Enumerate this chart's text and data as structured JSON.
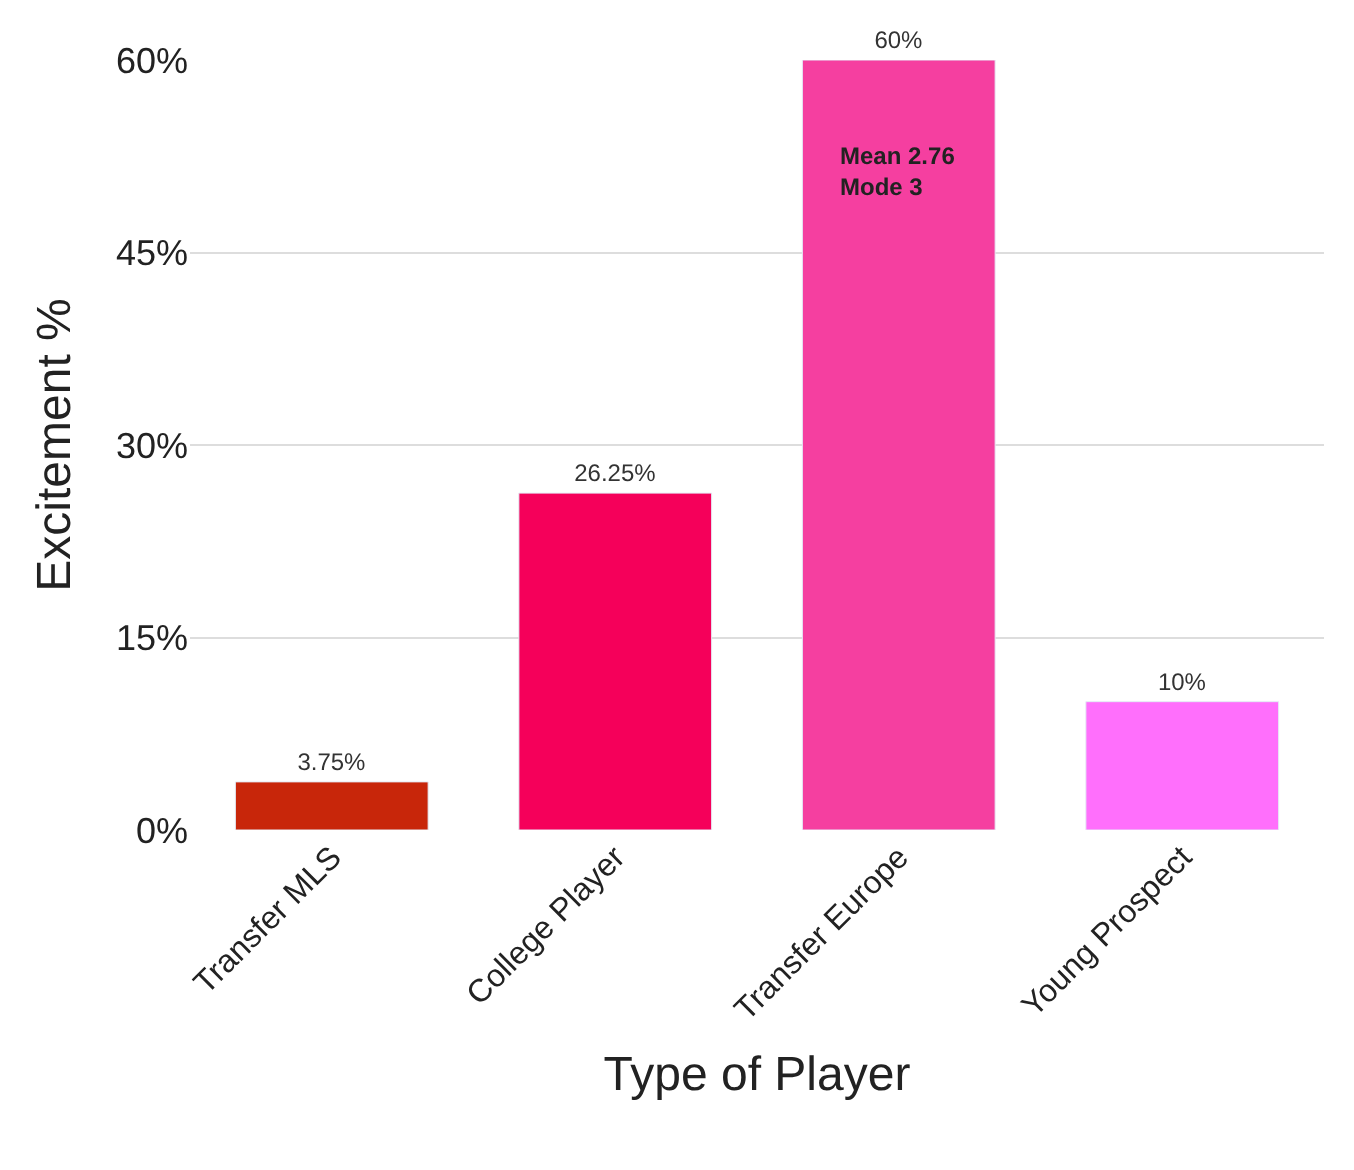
{
  "chart_data": {
    "type": "bar",
    "xlabel": "Type of Player",
    "ylabel": "Excitement %",
    "categories": [
      "Transfer MLS",
      "College Player",
      "Transfer Europe",
      "Young Prospect"
    ],
    "values": [
      3.75,
      26.25,
      60,
      10
    ],
    "colors": [
      "#c8260a",
      "#f5005a",
      "#f53fa0",
      "#ff6ffc"
    ],
    "value_labels": [
      "3.75%",
      "26.25%",
      "60%",
      "10%"
    ],
    "ylim": [
      0,
      60
    ],
    "yticks": [
      {
        "value": 0,
        "label": "0%"
      },
      {
        "value": 15,
        "label": "15%"
      },
      {
        "value": 30,
        "label": "30%"
      },
      {
        "value": 45,
        "label": "45%"
      },
      {
        "value": 60,
        "label": "60%"
      }
    ],
    "grid": "y",
    "legend": false,
    "annotations": [
      "Mean 2.76\nMode 3"
    ]
  }
}
